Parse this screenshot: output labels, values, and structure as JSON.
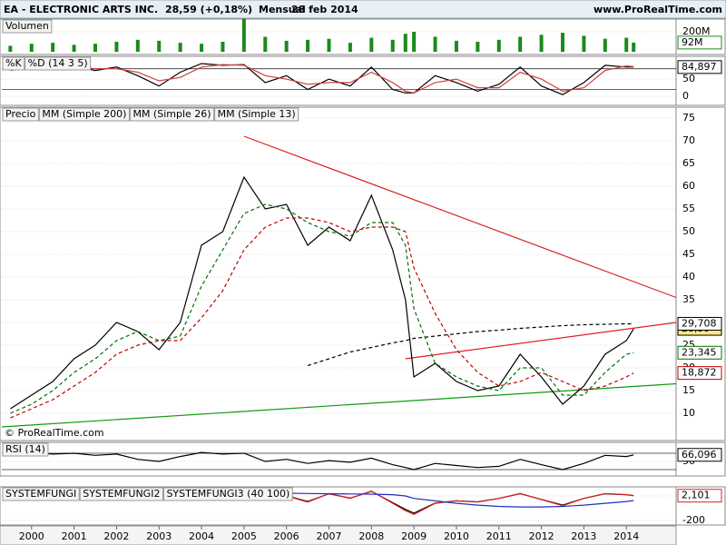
{
  "header": {
    "symbol": "EA - ELECTRONIC ARTS INC.",
    "quote": "28,59 (+0,18%)",
    "period": "Mensual",
    "date": "28 feb 2014",
    "site": "www.ProRealTime.com"
  },
  "chart_data": [
    {
      "type": "bar",
      "xlim": [
        1999.3,
        2015.17
      ],
      "ylim": [
        -27,
        327
      ],
      "yticks": [
        {
          "value": 200,
          "label": "200M"
        }
      ],
      "x": [
        1999.5,
        2000,
        2000.5,
        2001,
        2001.5,
        2002,
        2002.5,
        2003,
        2003.5,
        2004,
        2004.5,
        2005,
        2005.5,
        2006,
        2006.5,
        2007,
        2007.5,
        2008,
        2008.5,
        2008.8,
        2009,
        2009.5,
        2010,
        2010.5,
        2011,
        2011.5,
        2012,
        2012.5,
        2013,
        2013.5,
        2014,
        2014.17
      ],
      "series": [
        {
          "name": "Volumen",
          "color": "#1a8a1a",
          "last_label": "92M",
          "values": [
            60,
            80,
            90,
            70,
            80,
            100,
            120,
            110,
            90,
            80,
            100,
            330,
            150,
            110,
            120,
            130,
            90,
            140,
            120,
            180,
            200,
            150,
            110,
            100,
            120,
            150,
            170,
            190,
            160,
            130,
            140,
            92
          ]
        }
      ]
    },
    {
      "type": "line",
      "xlim": [
        1999.3,
        2015.17
      ],
      "ylim": [
        -26,
        116
      ],
      "yticks": [
        0,
        50
      ],
      "levels": [
        20,
        80
      ],
      "x": [
        1999.5,
        2000,
        2000.5,
        2001,
        2001.5,
        2002,
        2002.5,
        2003,
        2003.5,
        2004,
        2004.5,
        2005,
        2005.5,
        2006,
        2006.5,
        2007,
        2007.5,
        2008,
        2008.5,
        2008.8,
        2009,
        2009.5,
        2010,
        2010.5,
        2011,
        2011.5,
        2012,
        2012.5,
        2013,
        2013.5,
        2014,
        2014.17
      ],
      "series": [
        {
          "name": "%K",
          "color": "#000000",
          "last_label": "84,897",
          "values": [
            80,
            90,
            85,
            88,
            75,
            85,
            60,
            30,
            70,
            95,
            90,
            92,
            40,
            60,
            20,
            50,
            30,
            85,
            20,
            10,
            10,
            60,
            40,
            15,
            35,
            85,
            30,
            5,
            40,
            90,
            85,
            84.897
          ]
        },
        {
          "name": "%D (14 3 5)",
          "color": "#d04040",
          "values": [
            75,
            85,
            88,
            86,
            80,
            80,
            70,
            45,
            55,
            85,
            92,
            90,
            60,
            50,
            35,
            40,
            40,
            70,
            40,
            15,
            10,
            40,
            50,
            25,
            25,
            70,
            50,
            15,
            25,
            75,
            88,
            86
          ]
        }
      ]
    },
    {
      "type": "line",
      "xlim": [
        1999.3,
        2015.17
      ],
      "ylim": [
        4,
        77.4
      ],
      "yticks": [
        10,
        15,
        20,
        25,
        30,
        35,
        40,
        45,
        50,
        55,
        60,
        65,
        70,
        75
      ],
      "annotation": "© ProRealTime.com",
      "trendlines": [
        {
          "color": "#e02020",
          "points": [
            [
              2005,
              71
            ],
            [
              2015.17,
              35.5
            ]
          ]
        },
        {
          "color": "#e02020",
          "points": [
            [
              2008.8,
              22
            ],
            [
              2015.17,
              30
            ]
          ]
        },
        {
          "color": "#119911",
          "points": [
            [
              1999.3,
              7
            ],
            [
              2015.17,
              16.5
            ]
          ]
        }
      ],
      "x": [
        1999.5,
        2000,
        2000.5,
        2001,
        2001.5,
        2002,
        2002.5,
        2003,
        2003.5,
        2004,
        2004.5,
        2005,
        2005.5,
        2006,
        2006.5,
        2007,
        2007.5,
        2008,
        2008.5,
        2008.8,
        2009,
        2009.5,
        2010,
        2010.5,
        2011,
        2011.5,
        2012,
        2012.5,
        2013,
        2013.5,
        2014,
        2014.17
      ],
      "series": [
        {
          "name": "Precio",
          "color": "#000000",
          "last_label": "28,59",
          "values": [
            11,
            14,
            17,
            22,
            25,
            30,
            28,
            24,
            30,
            47,
            50,
            62,
            55,
            56,
            47,
            51,
            48,
            58,
            46,
            35,
            18,
            21,
            17,
            15,
            16,
            23,
            18,
            12,
            16,
            23,
            26,
            28.59
          ]
        },
        {
          "name": "MM (Simple 200)",
          "color": "#000000",
          "dash": true,
          "last_label": "29,708",
          "values": [
            null,
            null,
            null,
            null,
            null,
            null,
            null,
            null,
            null,
            null,
            null,
            null,
            null,
            null,
            20.5,
            22,
            23.5,
            24.5,
            25.5,
            26,
            26.5,
            27,
            27.5,
            28,
            28.3,
            28.7,
            29,
            29.3,
            29.5,
            29.6,
            29.7,
            29.708
          ]
        },
        {
          "name": "MM (Simple 26)",
          "color": "#c00000",
          "dash": true,
          "last_label": "18,872",
          "values": [
            9,
            11,
            13,
            16,
            19,
            23,
            25,
            26,
            26,
            31,
            37,
            46,
            51,
            53,
            53,
            52,
            50,
            51,
            51,
            50,
            42,
            32,
            24,
            19,
            16,
            17,
            19,
            17,
            15,
            16,
            18,
            18.872
          ]
        },
        {
          "name": "MM (Simple 13)",
          "color": "#007000",
          "dash": true,
          "last_label": "23,345",
          "values": [
            10,
            12,
            15,
            19,
            22,
            26,
            28,
            26,
            27,
            38,
            46,
            54,
            56,
            55,
            52,
            50,
            49,
            52,
            52,
            47,
            33,
            21,
            18,
            16,
            15,
            20,
            20,
            14,
            14,
            19,
            23,
            23.345
          ]
        }
      ]
    },
    {
      "type": "line",
      "xlim": [
        1999.3,
        2015.17
      ],
      "ylim": [
        14.4,
        96.7
      ],
      "yticks": [
        50
      ],
      "levels": [
        30,
        70
      ],
      "x": [
        1999.5,
        2000,
        2000.5,
        2001,
        2001.5,
        2002,
        2002.5,
        2003,
        2003.5,
        2004,
        2004.5,
        2005,
        2005.5,
        2006,
        2006.5,
        2007,
        2007.5,
        2008,
        2008.5,
        2008.8,
        2009,
        2009.5,
        2010,
        2010.5,
        2011,
        2011.5,
        2012,
        2012.5,
        2013,
        2013.5,
        2014,
        2014.17
      ],
      "series": [
        {
          "name": "RSI (14)",
          "color": "#000000",
          "last_label": "66,096",
          "values": [
            70,
            72,
            68,
            70,
            65,
            68,
            55,
            50,
            62,
            72,
            68,
            70,
            50,
            55,
            45,
            52,
            48,
            58,
            42,
            35,
            30,
            45,
            40,
            35,
            38,
            55,
            42,
            30,
            45,
            65,
            62,
            66.096
          ]
        }
      ]
    },
    {
      "type": "line",
      "xlim": [
        1999.3,
        2015.17
      ],
      "ylim": [
        -237,
        74
      ],
      "yticks": [
        0,
        -200
      ],
      "xticks": [
        2000,
        2001,
        2002,
        2003,
        2004,
        2005,
        2006,
        2007,
        2008,
        2009,
        2010,
        2011,
        2012,
        2013,
        2014
      ],
      "x": [
        1999.5,
        2000,
        2000.5,
        2001,
        2001.5,
        2002,
        2002.5,
        2003,
        2003.5,
        2004,
        2004.5,
        2005,
        2005.5,
        2006,
        2006.5,
        2007,
        2007.5,
        2008,
        2008.5,
        2008.8,
        2009,
        2009.5,
        2010,
        2010.5,
        2011,
        2011.5,
        2012,
        2012.5,
        2013,
        2013.5,
        2014,
        2014.17
      ],
      "series": [
        {
          "name": "SYSTEMFUNGI",
          "color": "#000000",
          "values": [
            38,
            48,
            44,
            48,
            30,
            44,
            22,
            -15,
            28,
            48,
            40,
            48,
            -25,
            2,
            -45,
            18,
            -18,
            38,
            -55,
            -110,
            -140,
            -58,
            -40,
            -48,
            -20,
            18,
            -28,
            -75,
            -20,
            18,
            10,
            3
          ]
        },
        {
          "name": "SYSTEMFUNGI2",
          "color": "#e02020",
          "last_label": "2,101",
          "values": [
            40,
            50,
            45,
            50,
            30,
            45,
            20,
            -20,
            30,
            50,
            40,
            50,
            -30,
            0,
            -50,
            20,
            -20,
            40,
            -60,
            -120,
            -150,
            -60,
            -40,
            -50,
            -20,
            20,
            -30,
            -80,
            -20,
            20,
            10,
            2.101
          ]
        },
        {
          "name": "SYSTEMFUNGI3 (40 100)",
          "color": "#2030c0",
          "values": [
            0,
            5,
            10,
            10,
            12,
            15,
            14,
            12,
            10,
            15,
            20,
            25,
            25,
            22,
            20,
            18,
            16,
            15,
            10,
            0,
            -20,
            -40,
            -60,
            -75,
            -85,
            -90,
            -90,
            -85,
            -75,
            -60,
            -45,
            -38
          ]
        }
      ]
    }
  ]
}
